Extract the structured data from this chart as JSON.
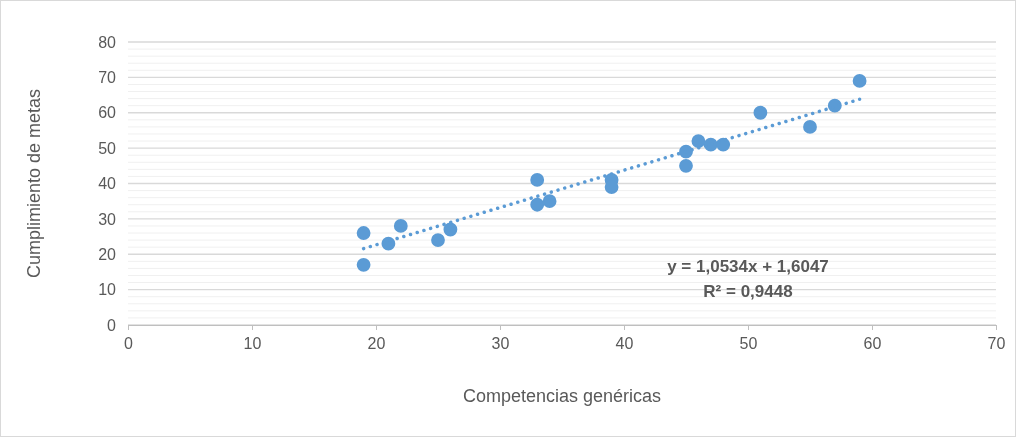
{
  "chart_data": {
    "type": "scatter",
    "xlabel": "Competencias genéricas",
    "ylabel": "Cumplimiento de metas",
    "xlim": [
      0,
      70
    ],
    "xticks": [
      0,
      10,
      20,
      30,
      40,
      50,
      60,
      70
    ],
    "ylim": [
      0,
      80
    ],
    "yticks": [
      0,
      {
        "value": 2,
        "label": null
      },
      {
        "value": 4,
        "label": null
      },
      {
        "value": 6,
        "label": null
      },
      {
        "value": 8,
        "label": null
      },
      10,
      {
        "value": 12,
        "label": null
      },
      {
        "value": 14,
        "label": null
      },
      {
        "value": 16,
        "label": null
      },
      {
        "value": 18,
        "label": null
      },
      20,
      {
        "value": 22,
        "label": null
      },
      {
        "value": 24,
        "label": null
      },
      {
        "value": 26,
        "label": null
      },
      {
        "value": 28,
        "label": null
      },
      30,
      {
        "value": 32,
        "label": null
      },
      {
        "value": 34,
        "label": null
      },
      {
        "value": 36,
        "label": null
      },
      {
        "value": 38,
        "label": null
      },
      40,
      {
        "value": 42,
        "label": null
      },
      {
        "value": 44,
        "label": null
      },
      {
        "value": 46,
        "label": null
      },
      {
        "value": 48,
        "label": null
      },
      50,
      {
        "value": 52,
        "label": null
      },
      {
        "value": 54,
        "label": null
      },
      {
        "value": 56,
        "label": null
      },
      {
        "value": 58,
        "label": null
      },
      60,
      {
        "value": 62,
        "label": null
      },
      {
        "value": 64,
        "label": null
      },
      {
        "value": 66,
        "label": null
      },
      {
        "value": 68,
        "label": null
      },
      70,
      {
        "value": 72,
        "label": null
      },
      {
        "value": 74,
        "label": null
      },
      {
        "value": 76,
        "label": null
      },
      {
        "value": 78,
        "label": null
      },
      80
    ],
    "grid": "y",
    "series": [
      {
        "marker": "circle",
        "color": "#5b9bd5",
        "x": [
          19,
          19,
          21,
          22,
          25,
          26,
          33,
          33,
          34,
          39,
          39,
          45,
          45,
          46,
          47,
          48,
          51,
          55,
          57,
          59
        ],
        "values": [
          26,
          17,
          23,
          28,
          24,
          27,
          41,
          34,
          35,
          41,
          39,
          49,
          45,
          52,
          51,
          51,
          60,
          56,
          62,
          69
        ]
      },
      {
        "type": "line",
        "color": "#5b9bd5",
        "line_style": "dotted",
        "x": [
          19,
          59
        ],
        "values": [
          21.6,
          63.8
        ]
      }
    ],
    "annotations": [
      "y = 1,0534x + 1,6047",
      "R² = 0,9448"
    ]
  }
}
